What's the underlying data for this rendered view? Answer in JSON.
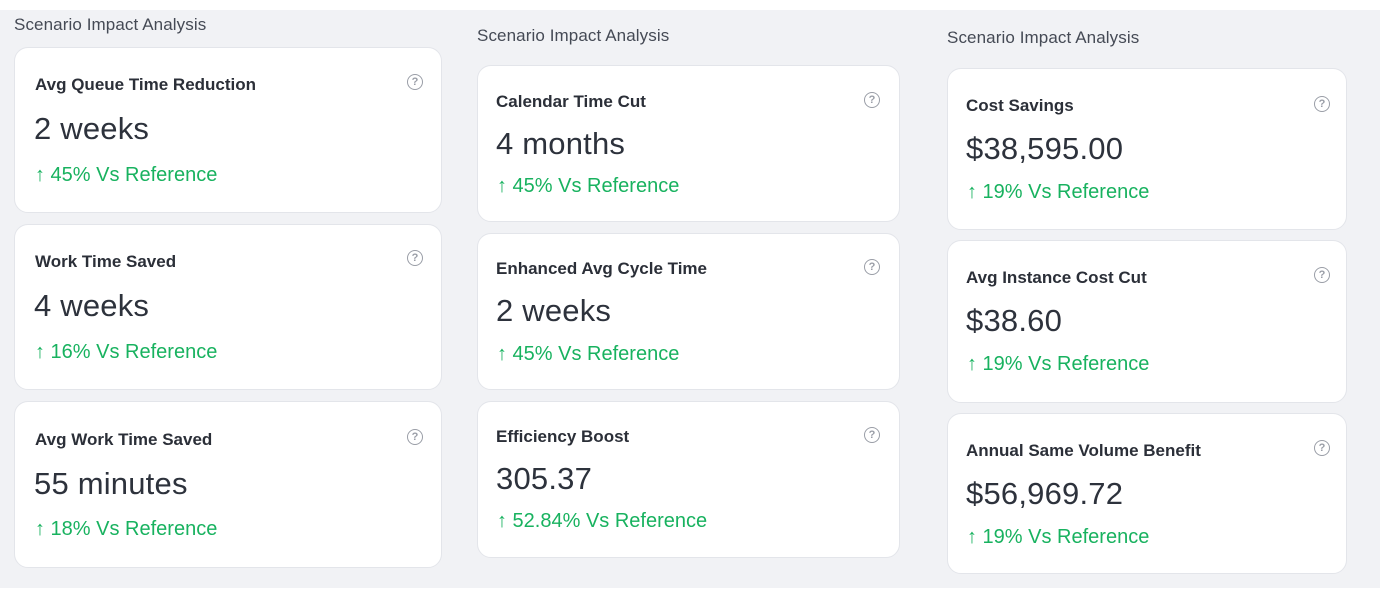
{
  "columns": [
    {
      "title": "Scenario Impact Analysis",
      "cards": [
        {
          "label": "Avg Queue Time Reduction",
          "value": "2 weeks",
          "delta": "↑ 45% Vs Reference"
        },
        {
          "label": "Work Time Saved",
          "value": "4 weeks",
          "delta": "↑ 16% Vs Reference"
        },
        {
          "label": "Avg Work Time Saved",
          "value": "55 minutes",
          "delta": "↑ 18% Vs Reference"
        }
      ]
    },
    {
      "title": "Scenario Impact Analysis",
      "cards": [
        {
          "label": "Calendar Time Cut",
          "value": "4 months",
          "delta": "↑ 45% Vs Reference"
        },
        {
          "label": "Enhanced Avg Cycle Time",
          "value": "2 weeks",
          "delta": "↑ 45% Vs Reference"
        },
        {
          "label": "Efficiency Boost",
          "value": "305.37",
          "delta": "↑ 52.84% Vs Reference"
        }
      ]
    },
    {
      "title": "Scenario Impact Analysis",
      "cards": [
        {
          "label": "Cost Savings",
          "value": "$38,595.00",
          "delta": "↑ 19% Vs Reference"
        },
        {
          "label": "Avg Instance Cost Cut",
          "value": "$38.60",
          "delta": "↑ 19% Vs Reference"
        },
        {
          "label": "Annual Same Volume Benefit",
          "value": "$56,969.72",
          "delta": "↑ 19% Vs Reference"
        }
      ]
    }
  ],
  "help_icon_glyph": "?",
  "colors": {
    "positive": "#18b25f",
    "background": "#f1f2f5",
    "card": "#ffffff"
  }
}
